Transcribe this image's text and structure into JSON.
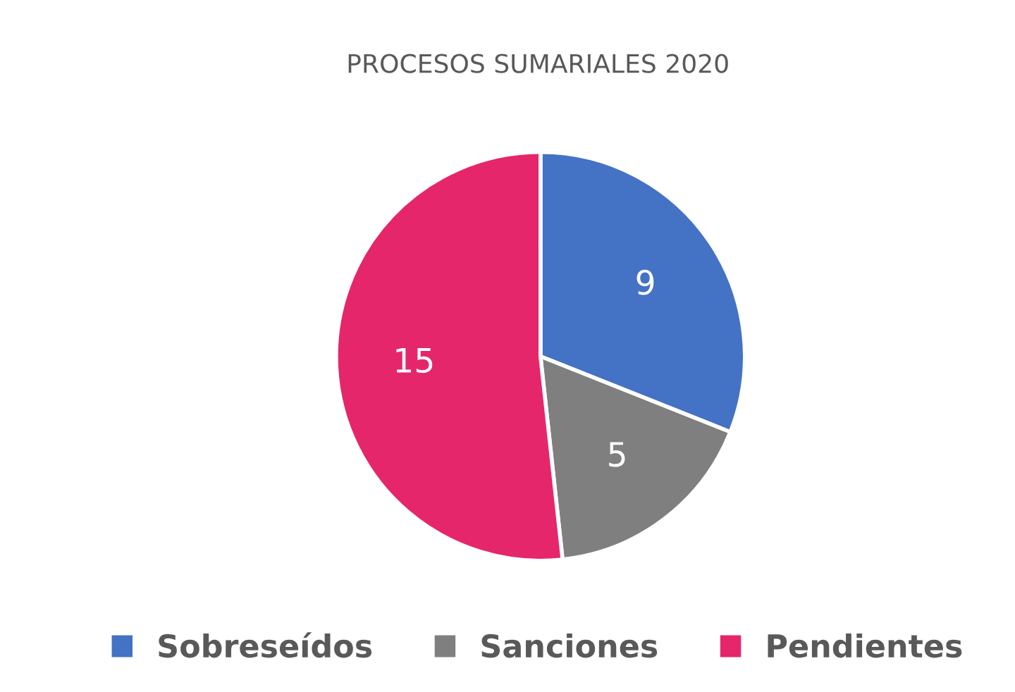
{
  "chart_data": {
    "type": "pie",
    "title": "PROCESOS SUMARIALES 2020",
    "categories": [
      "Sobreseídos",
      "Sanciones",
      "Pendientes"
    ],
    "values": [
      9,
      5,
      15
    ],
    "colors": [
      "#4472c4",
      "#7f7f7f",
      "#e6266a"
    ],
    "data_labels": true,
    "legend": "bottom"
  }
}
